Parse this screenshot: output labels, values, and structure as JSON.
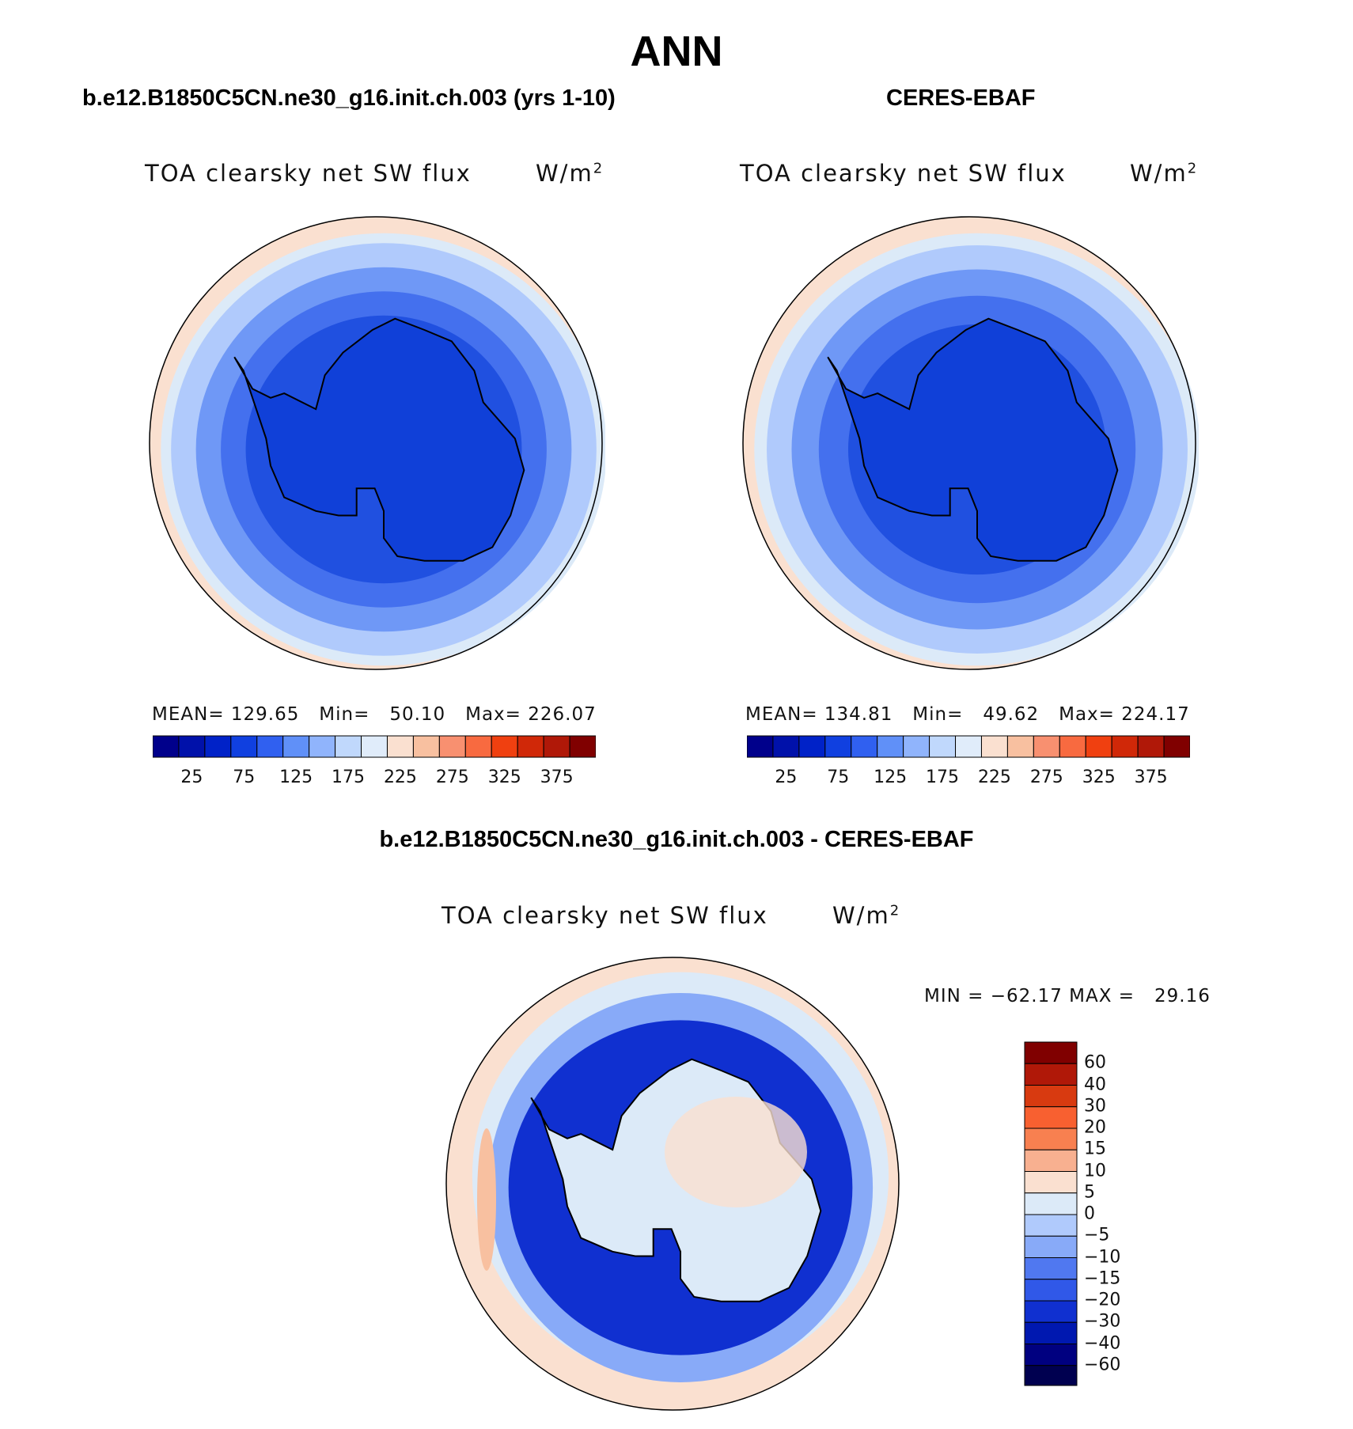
{
  "title": "ANN",
  "panels": [
    {
      "id": "model",
      "case_title": "b.e12.B1850C5CN.ne30_g16.init.ch.003 (yrs 1-10)",
      "plot_title": "TOA clearsky net SW flux",
      "units_base": "W/m",
      "units_exp": "2",
      "stats_text": "MEAN= 129.65   Min=   50.10   Max= 226.07",
      "mean": 129.65,
      "min": 50.1,
      "max": 226.07,
      "bands": [
        0.985,
        0.94,
        0.83,
        0.72,
        0.61
      ]
    },
    {
      "id": "obs",
      "case_title": "CERES-EBAF",
      "plot_title": "TOA clearsky net SW flux",
      "units_base": "W/m",
      "units_exp": "2",
      "stats_text": "MEAN= 134.81   Min=   49.62   Max= 224.17",
      "mean": 134.81,
      "min": 49.62,
      "max": 224.17,
      "bands": [
        0.985,
        0.93,
        0.82,
        0.7,
        0.57
      ]
    }
  ],
  "abs_colorbar": {
    "colors": [
      "#00008b",
      "#0011aa",
      "#0022c8",
      "#1040e0",
      "#3060f0",
      "#6090f8",
      "#90b4fc",
      "#c0d8fc",
      "#e0ecfa",
      "#fae0d0",
      "#f8c0a0",
      "#f89070",
      "#f86a40",
      "#f04010",
      "#d02808",
      "#b01808",
      "#800000"
    ],
    "labels": [
      "25",
      "75",
      "125",
      "175",
      "225",
      "275",
      "325",
      "375"
    ]
  },
  "diff": {
    "title": "b.e12.B1850C5CN.ne30_g16.init.ch.003 - CERES-EBAF",
    "plot_title": "TOA clearsky net SW flux",
    "units_base": "W/m",
    "units_exp": "2",
    "minmax_text": "MIN = −62.17 MAX =   29.16",
    "min": -62.17,
    "max": 29.16,
    "colorbar": {
      "colors": [
        "#800000",
        "#b01808",
        "#d83a10",
        "#f86030",
        "#f88050",
        "#f8b090",
        "#fae0d0",
        "#dceaf8",
        "#b0cafc",
        "#88aaf8",
        "#5078f0",
        "#3058e8",
        "#1030d0",
        "#0018b0",
        "#000080"
      ],
      "labels": [
        "60",
        "40",
        "30",
        "20",
        "15",
        "10",
        "5",
        "0",
        "−5",
        "−10",
        "−15",
        "−20",
        "−30",
        "−40",
        "−60"
      ]
    }
  }
}
